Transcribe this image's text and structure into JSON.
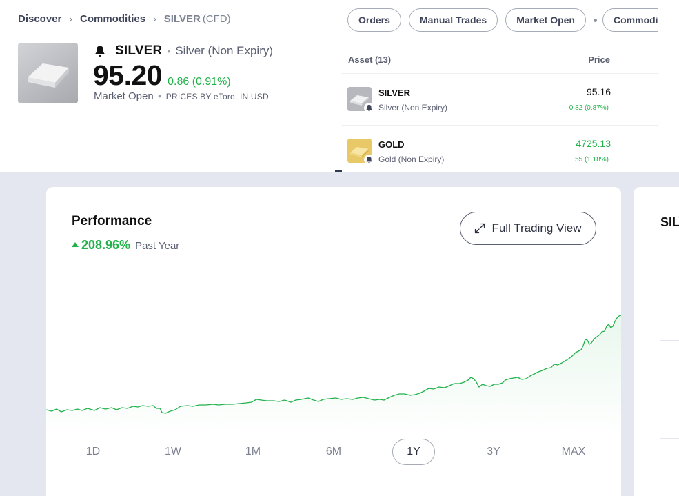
{
  "breadcrumb": {
    "items": [
      "Discover",
      "Commodities"
    ],
    "current": "SILVER",
    "current_tag": "(CFD)"
  },
  "asset": {
    "symbol": "SILVER",
    "name": "Silver (Non Expiry)",
    "price": "95.20",
    "change": "0.86 (0.91%)",
    "market_status": "Market Open",
    "prices_by": "PRICES BY eToro, IN USD"
  },
  "chips": [
    "Orders",
    "Manual Trades",
    "Market Open",
    "Commodities"
  ],
  "asset_panel": {
    "col_asset": "Asset (13)",
    "col_price": "Price",
    "rows": [
      {
        "symbol": "SILVER",
        "name": "Silver (Non Expiry)",
        "price": "95.16",
        "change": "0.82 (0.87%)"
      },
      {
        "symbol": "GOLD",
        "name": "Gold (Non Expiry)",
        "price": "4725.13",
        "change": "55 (1.18%)"
      }
    ]
  },
  "performance": {
    "title": "Performance",
    "change_pct": "208.96%",
    "period": "Past Year",
    "full_view_label": "Full Trading View",
    "ranges": [
      "1D",
      "1W",
      "1M",
      "6M",
      "1Y",
      "3Y",
      "MAX"
    ],
    "active_range": "1Y"
  },
  "side_card": {
    "title": "SILVER"
  },
  "colors": {
    "positive": "#21b24a",
    "page_bg": "#e4e7f0"
  }
}
